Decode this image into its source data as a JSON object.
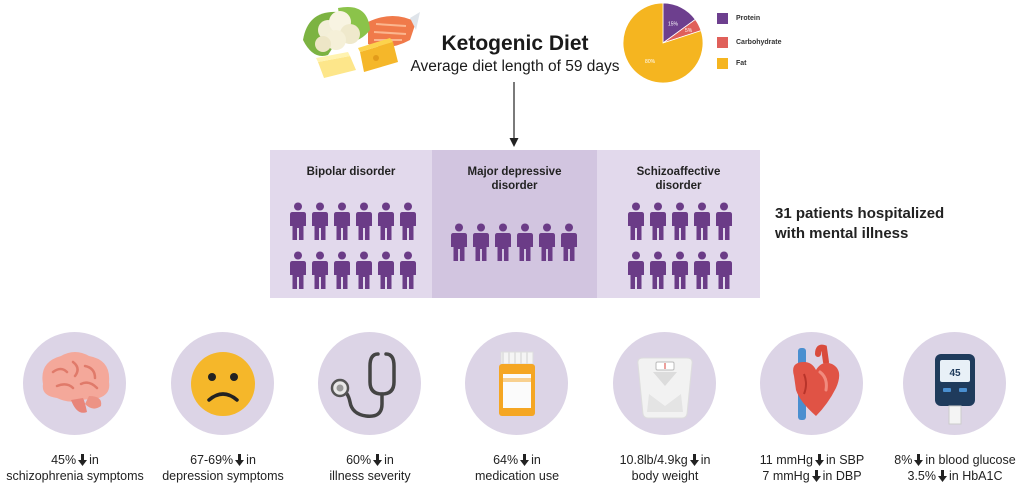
{
  "header": {
    "title": "Ketogenic Diet",
    "subtitle": "Average diet length of 59 days"
  },
  "chart_data": {
    "type": "pie",
    "categories": [
      "Protein",
      "Carbohydrate",
      "Fat"
    ],
    "values": [
      15,
      5,
      80
    ],
    "slice_labels": [
      "15%",
      "5%",
      "80%"
    ],
    "colors": [
      "#6d3f8e",
      "#e0605a",
      "#f5b520"
    ],
    "legend_position": "right"
  },
  "icons": {
    "food": "food-plate-icon",
    "arrow": "arrow-down-icon",
    "person": "person-icon"
  },
  "disorders": [
    {
      "title_lines": [
        "Bipolar disorder"
      ],
      "count": 12,
      "bg": "#e2d9ec"
    },
    {
      "title_lines": [
        "Major depressive",
        "disorder"
      ],
      "count": 6,
      "bg": "#d2c5e0"
    },
    {
      "title_lines": [
        "Schizoaffective",
        "disorder"
      ],
      "count": 10,
      "bg": "#e2d9ec"
    }
  ],
  "patients": {
    "line1": "31 patients hospitalized",
    "line2": "with mental illness"
  },
  "outcomes": [
    {
      "icon": "brain-icon",
      "line1_pre": "45%",
      "line1_post": "in",
      "line2": "schizophrenia symptoms"
    },
    {
      "icon": "sad-face-icon",
      "line1_pre": "67-69%",
      "line1_post": "in",
      "line2": "depression symptoms"
    },
    {
      "icon": "stethoscope-icon",
      "line1_pre": "60%",
      "line1_post": "in",
      "line2": "illness severity"
    },
    {
      "icon": "pill-bottle-icon",
      "line1_pre": "64%",
      "line1_post": "in",
      "line2": "medication use"
    },
    {
      "icon": "scale-icon",
      "line1_pre": "10.8lb/4.9kg",
      "line1_post": "in",
      "line2": "body weight"
    },
    {
      "icon": "heart-icon",
      "line1_pre": "11 mmHg",
      "line1_post": "in SBP",
      "line2_pre": "7 mmHg",
      "line2_post": "in DBP"
    },
    {
      "icon": "glucose-meter-icon",
      "glucose_reading": "45",
      "line1_pre": "8%",
      "line1_post": "in blood glucose",
      "line2_pre": "3.5%",
      "line2_post": "in HbA1C"
    }
  ]
}
